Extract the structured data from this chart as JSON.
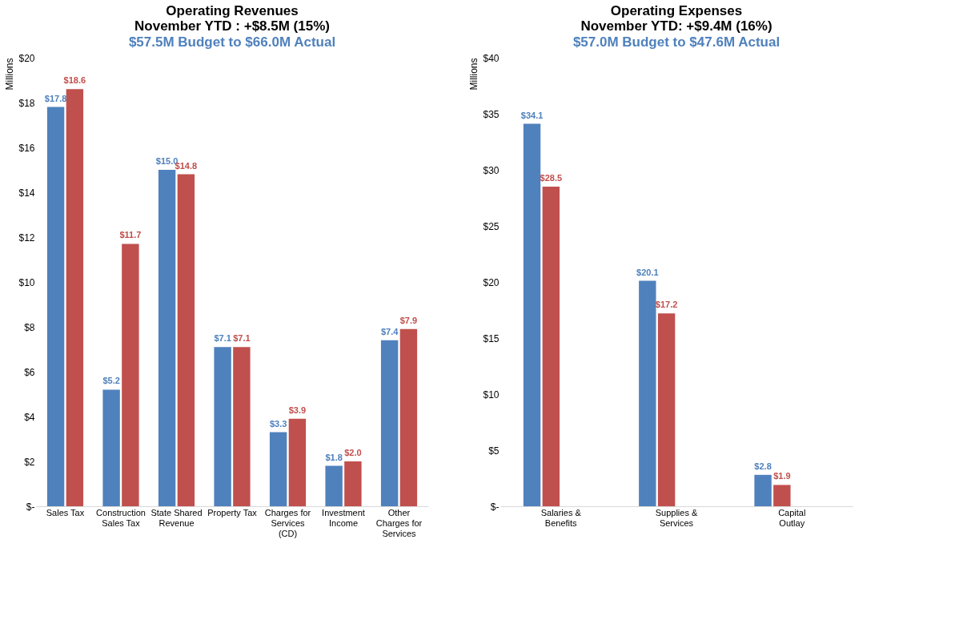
{
  "chart_data": [
    {
      "type": "bar",
      "title": [
        "Operating Revenues",
        "November YTD : +$8.5M (15%)"
      ],
      "subtitle": "$57.5M Budget to $66.0M Actual",
      "ylabel": "Millions",
      "categories": [
        "Sales Tax",
        "Construction Sales Tax",
        "State Shared Revenue",
        "Property Tax",
        "Charges for Services (CD)",
        "Investment Income",
        "Other Charges for Services"
      ],
      "series": [
        {
          "color": "#4f81bd",
          "values": [
            17.8,
            5.2,
            15.0,
            7.1,
            3.3,
            1.8,
            7.4
          ],
          "value_labels": [
            "$17.8",
            "$5.2",
            "$15.0",
            "$7.1",
            "$3.3",
            "$1.8",
            "$7.4"
          ]
        },
        {
          "color": "#c0504d",
          "values": [
            18.6,
            11.7,
            14.8,
            7.1,
            3.9,
            2.0,
            7.9
          ],
          "value_labels": [
            "$18.6",
            "$11.7",
            "$14.8",
            "$7.1",
            "$3.9",
            "$2.0",
            "$7.9"
          ]
        }
      ],
      "ylim": [
        0,
        20
      ],
      "yticks": [
        {
          "value": 0,
          "label": "$-"
        },
        {
          "value": 2,
          "label": "$2"
        },
        {
          "value": 4,
          "label": "$4"
        },
        {
          "value": 6,
          "label": "$6"
        },
        {
          "value": 8,
          "label": "$8"
        },
        {
          "value": 10,
          "label": "$10"
        },
        {
          "value": 12,
          "label": "$12"
        },
        {
          "value": 14,
          "label": "$14"
        },
        {
          "value": 16,
          "label": "$16"
        },
        {
          "value": 18,
          "label": "$18"
        },
        {
          "value": 20,
          "label": "$20"
        }
      ],
      "grid": false,
      "legend": false
    },
    {
      "type": "bar",
      "title": [
        "Operating Expenses",
        "November YTD: +$9.4M (16%)"
      ],
      "subtitle": "$57.0M Budget to $47.6M Actual",
      "ylabel": "Millions",
      "categories": [
        "Salaries & Benefits",
        "Supplies & Services",
        "Capital Outlay"
      ],
      "series": [
        {
          "color": "#4f81bd",
          "values": [
            34.1,
            20.1,
            2.8
          ],
          "value_labels": [
            "$34.1",
            "$20.1",
            "$2.8"
          ]
        },
        {
          "color": "#c0504d",
          "values": [
            28.5,
            17.2,
            1.9
          ],
          "value_labels": [
            "$28.5",
            "$17.2",
            "$1.9"
          ]
        }
      ],
      "ylim": [
        0,
        40
      ],
      "yticks": [
        {
          "value": 0,
          "label": "$-"
        },
        {
          "value": 5,
          "label": "$5"
        },
        {
          "value": 10,
          "label": "$10"
        },
        {
          "value": 15,
          "label": "$15"
        },
        {
          "value": 20,
          "label": "$20"
        },
        {
          "value": 25,
          "label": "$25"
        },
        {
          "value": 30,
          "label": "$30"
        },
        {
          "value": 35,
          "label": "$35"
        },
        {
          "value": 40,
          "label": "$40"
        }
      ],
      "grid": false,
      "legend": false
    }
  ]
}
